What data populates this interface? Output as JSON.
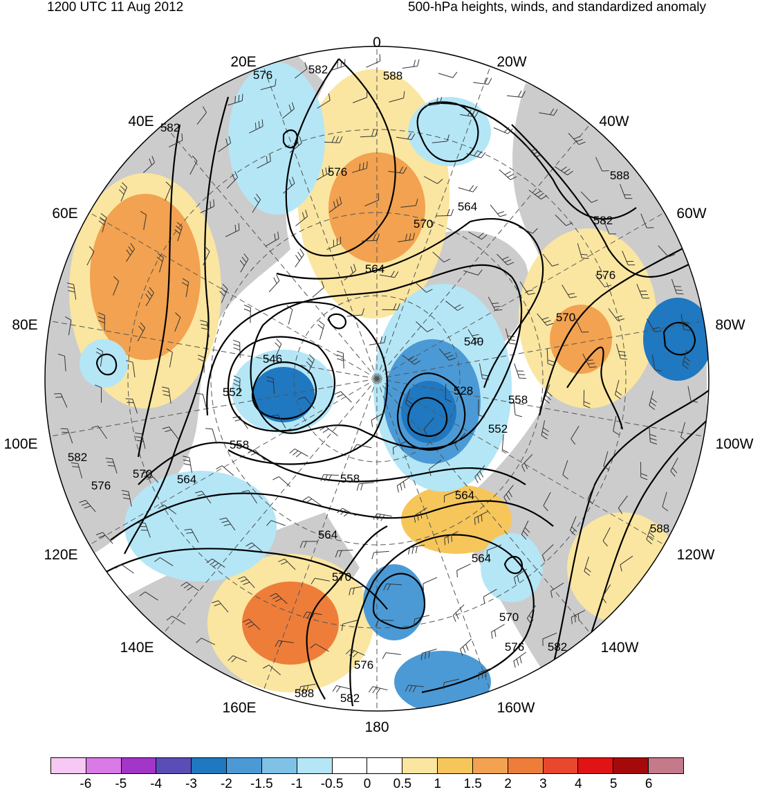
{
  "header": {
    "left": "1200 UTC 11 Aug 2012",
    "right": "500-hPa heights, winds, and standardized anomaly"
  },
  "longitude_labels": [
    "0",
    "20W",
    "40W",
    "60W",
    "80W",
    "100W",
    "120W",
    "140W",
    "160W",
    "180",
    "160E",
    "140E",
    "120E",
    "100E",
    "80E",
    "60E",
    "40E",
    "20E"
  ],
  "contour_labels": [
    "588",
    "582",
    "576",
    "576",
    "582",
    "588",
    "564",
    "570",
    "564",
    "582",
    "576",
    "570",
    "546",
    "552",
    "558",
    "540",
    "528",
    "558",
    "552",
    "582",
    "576",
    "570",
    "564",
    "558",
    "564",
    "564",
    "564",
    "570",
    "570",
    "576",
    "582",
    "576",
    "582",
    "588",
    "588"
  ],
  "colorbar": {
    "ticks": [
      "-6",
      "-5",
      "-4",
      "-3",
      "-2",
      "-1.5",
      "-1",
      "-0.5",
      "0",
      "0.5",
      "1",
      "1.5",
      "2",
      "3",
      "4",
      "5",
      "6"
    ],
    "colors": [
      "#f8c8f4",
      "#d97ae6",
      "#a335c8",
      "#5a4db6",
      "#1f78c0",
      "#4b9ad6",
      "#80c2e6",
      "#b4e6f6",
      "#ffffff",
      "#ffffff",
      "#fae6a0",
      "#f6c65a",
      "#f2a250",
      "#ee7d3a",
      "#e8482e",
      "#e01414",
      "#a40a0a",
      "#c47a8a"
    ]
  },
  "map_colors": {
    "land": "#cccccc",
    "pos_weak": "#fae6a0",
    "pos_mid": "#f6c65a",
    "pos_strong": "#f2a250",
    "pos_vstrong": "#ee7d3a",
    "neg_weak": "#b4e6f6",
    "neg_mid": "#80c2e6",
    "neg_strong": "#4b9ad6",
    "neg_vstrong": "#1f78c0"
  }
}
